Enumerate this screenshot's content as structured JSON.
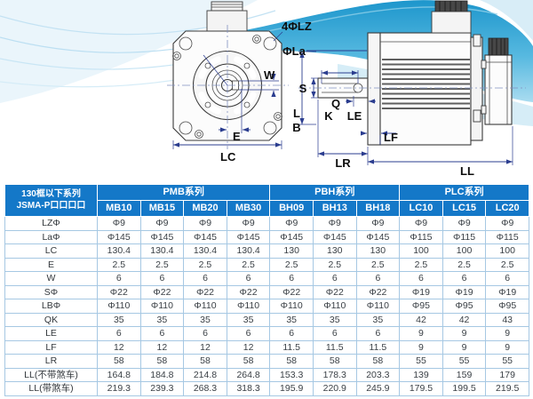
{
  "diagram": {
    "labels": {
      "lz4": "4ΦLZ",
      "la": "ΦLa",
      "w": "W",
      "e": "E",
      "lc": "LC",
      "s": "S",
      "q": "Q",
      "k": "K",
      "le": "LE",
      "l": "L",
      "b": "B",
      "lf": "LF",
      "lr": "LR",
      "ll": "LL"
    }
  },
  "table": {
    "corner_header_line1": "130框以下系列",
    "corner_header_line2": "JSMA-P口口口口",
    "series": [
      {
        "name": "PMB系列",
        "models": [
          "MB10",
          "MB15",
          "MB20",
          "MB30"
        ]
      },
      {
        "name": "PBH系列",
        "models": [
          "BH09",
          "BH13",
          "BH18"
        ]
      },
      {
        "name": "PLC系列",
        "models": [
          "LC10",
          "LC15",
          "LC20"
        ]
      }
    ],
    "rows": [
      {
        "label": "LZΦ",
        "values": [
          "Φ9",
          "Φ9",
          "Φ9",
          "Φ9",
          "Φ9",
          "Φ9",
          "Φ9",
          "Φ9",
          "Φ9",
          "Φ9"
        ]
      },
      {
        "label": "LaΦ",
        "values": [
          "Φ145",
          "Φ145",
          "Φ145",
          "Φ145",
          "Φ145",
          "Φ145",
          "Φ145",
          "Φ115",
          "Φ115",
          "Φ115"
        ]
      },
      {
        "label": "LC",
        "values": [
          "130.4",
          "130.4",
          "130.4",
          "130.4",
          "130",
          "130",
          "130",
          "100",
          "100",
          "100"
        ]
      },
      {
        "label": "E",
        "values": [
          "2.5",
          "2.5",
          "2.5",
          "2.5",
          "2.5",
          "2.5",
          "2.5",
          "2.5",
          "2.5",
          "2.5"
        ]
      },
      {
        "label": "W",
        "values": [
          "6",
          "6",
          "6",
          "6",
          "6",
          "6",
          "6",
          "6",
          "6",
          "6"
        ]
      },
      {
        "label": "SΦ",
        "values": [
          "Φ22",
          "Φ22",
          "Φ22",
          "Φ22",
          "Φ22",
          "Φ22",
          "Φ22",
          "Φ19",
          "Φ19",
          "Φ19"
        ]
      },
      {
        "label": "LBΦ",
        "values": [
          "Φ110",
          "Φ110",
          "Φ110",
          "Φ110",
          "Φ110",
          "Φ110",
          "Φ110",
          "Φ95",
          "Φ95",
          "Φ95"
        ]
      },
      {
        "label": "QK",
        "values": [
          "35",
          "35",
          "35",
          "35",
          "35",
          "35",
          "35",
          "42",
          "42",
          "43"
        ]
      },
      {
        "label": "LE",
        "values": [
          "6",
          "6",
          "6",
          "6",
          "6",
          "6",
          "6",
          "9",
          "9",
          "9"
        ]
      },
      {
        "label": "LF",
        "values": [
          "12",
          "12",
          "12",
          "12",
          "11.5",
          "11.5",
          "11.5",
          "9",
          "9",
          "9"
        ]
      },
      {
        "label": "LR",
        "values": [
          "58",
          "58",
          "58",
          "58",
          "58",
          "58",
          "58",
          "55",
          "55",
          "55"
        ]
      },
      {
        "label": "LL(不带煞车)",
        "values": [
          "164.8",
          "184.8",
          "214.8",
          "264.8",
          "153.3",
          "178.3",
          "203.3",
          "139",
          "159",
          "179"
        ]
      },
      {
        "label": "LL(带煞车)",
        "values": [
          "219.3",
          "239.3",
          "268.3",
          "318.3",
          "195.9",
          "220.9",
          "245.9",
          "179.5",
          "199.5",
          "219.5"
        ]
      }
    ]
  },
  "colors": {
    "header_blue": "#1478c8",
    "grid_blue": "#a6c8e3",
    "text_dark": "#3a4046",
    "dim_blue": "#2b3d8f",
    "swoosh_cyan": "#2aa2d6"
  }
}
